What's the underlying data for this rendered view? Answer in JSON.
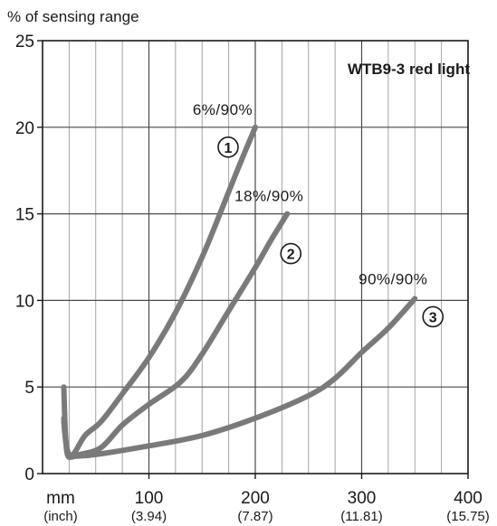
{
  "chart_data": {
    "type": "line",
    "title": "WTB9-3 red light",
    "ylabel": "% of sensing range",
    "xlabel": "mm",
    "x_unit_secondary": "(inch)",
    "xlim": [
      0,
      400
    ],
    "ylim": [
      0,
      25
    ],
    "grid": true,
    "xticks": [
      {
        "value": 100,
        "label": "100",
        "sublabel": "(3.94)"
      },
      {
        "value": 200,
        "label": "200",
        "sublabel": "(7.87)"
      },
      {
        "value": 300,
        "label": "300",
        "sublabel": "(11.81)"
      },
      {
        "value": 400,
        "label": "400",
        "sublabel": "(15.75)"
      }
    ],
    "yticks": [
      0,
      5,
      10,
      15,
      20,
      25
    ],
    "xgrid_minor_step": 25,
    "ygrid_step": 5,
    "series": [
      {
        "label": "6%/90%",
        "marker": "①",
        "points": [
          [
            20,
            3.2
          ],
          [
            22,
            1.8
          ],
          [
            25,
            1.1
          ],
          [
            30,
            1.2
          ],
          [
            40,
            2.2
          ],
          [
            55,
            3.0
          ],
          [
            75,
            4.6
          ],
          [
            100,
            6.7
          ],
          [
            125,
            9.3
          ],
          [
            150,
            12.5
          ],
          [
            170,
            15.5
          ],
          [
            185,
            17.8
          ],
          [
            200,
            20.0
          ]
        ]
      },
      {
        "label": "18%/90%",
        "marker": "②",
        "points": [
          [
            20,
            3.0
          ],
          [
            22,
            1.8
          ],
          [
            25,
            1.0
          ],
          [
            35,
            1.1
          ],
          [
            55,
            1.5
          ],
          [
            75,
            2.8
          ],
          [
            100,
            4.0
          ],
          [
            130,
            5.3
          ],
          [
            150,
            6.9
          ],
          [
            175,
            9.4
          ],
          [
            200,
            11.9
          ],
          [
            215,
            13.5
          ],
          [
            230,
            15.0
          ]
        ]
      },
      {
        "label": "90%/90%",
        "marker": "③",
        "points": [
          [
            20,
            5.0
          ],
          [
            21,
            3.0
          ],
          [
            22,
            1.8
          ],
          [
            24,
            1.0
          ],
          [
            30,
            1.0
          ],
          [
            50,
            1.1
          ],
          [
            100,
            1.6
          ],
          [
            150,
            2.2
          ],
          [
            200,
            3.2
          ],
          [
            250,
            4.5
          ],
          [
            275,
            5.5
          ],
          [
            300,
            7.0
          ],
          [
            325,
            8.4
          ],
          [
            350,
            10.1
          ]
        ]
      }
    ],
    "curve_color": "#7a7a7a",
    "grid_color": "#9a9a9a",
    "axis_color": "#1a1a1a"
  }
}
